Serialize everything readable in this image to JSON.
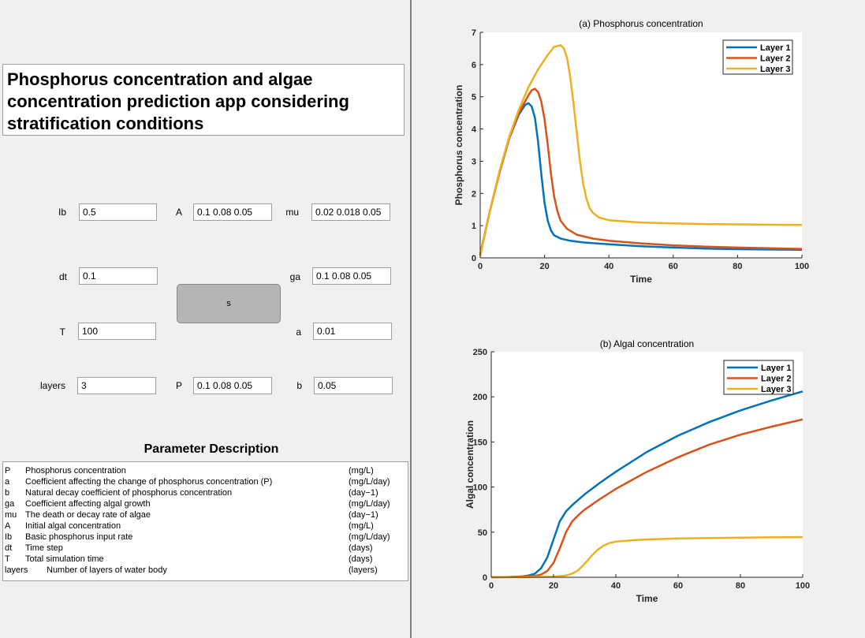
{
  "title": "Phosphorus concentration and algae concentration prediction app considering stratification conditions",
  "params": [
    {
      "label": "Ib",
      "value": "0.5"
    },
    {
      "label": "A",
      "value": "0.1 0.08 0.05"
    },
    {
      "label": "mu",
      "value": "0.02 0.018 0.05"
    },
    {
      "label": "dt",
      "value": "0.1"
    },
    {
      "label": "ga",
      "value": "0.1 0.08 0.05"
    },
    {
      "label": "T",
      "value": "100"
    },
    {
      "label": "a",
      "value": "0.01"
    },
    {
      "label": "layers",
      "value": "3"
    },
    {
      "label": "P",
      "value": "0.1 0.08 0.05"
    },
    {
      "label": "b",
      "value": "0.05"
    }
  ],
  "run_button_label": "s",
  "description": {
    "heading": "Parameter Description",
    "rows": [
      {
        "sym": "P",
        "text": "Phosphorus concentration",
        "unit": "(mg/L)"
      },
      {
        "sym": "a",
        "text": "Coefficient affecting the change of phosphorus concentration (P)",
        "unit": "(mg/L/day)"
      },
      {
        "sym": "b",
        "text": "Natural decay coefficient of phosphorus concentration",
        "unit": "(day−1)"
      },
      {
        "sym": "ga",
        "text": "Coefficient affecting algal growth",
        "unit": "(mg/L/day)"
      },
      {
        "sym": "mu",
        "text": "The death or decay rate of algae",
        "unit": "(day−1)"
      },
      {
        "sym": "A",
        "text": "Initial algal concentration",
        "unit": "(mg/L)"
      },
      {
        "sym": "Ib",
        "text": "Basic phosphorus input rate",
        "unit": "(mg/L/day)"
      },
      {
        "sym": "dt",
        "text": "Time step",
        "unit": "(days)"
      },
      {
        "sym": "T",
        "text": "Total simulation time",
        "unit": "(days)"
      },
      {
        "sym": "layers",
        "text": "Number of layers of water body",
        "unit": "(layers)"
      }
    ]
  },
  "colors": {
    "layer1": "#0072BD",
    "layer2": "#D95319",
    "layer3": "#EDB120"
  },
  "chart_data": [
    {
      "type": "line",
      "title": "(a) Phosphorus concentration",
      "xlabel": "Time",
      "ylabel": "Phosphorus concentration",
      "xlim": [
        0,
        100
      ],
      "ylim": [
        0,
        7
      ],
      "xticks": [
        0,
        20,
        40,
        60,
        80,
        100
      ],
      "yticks": [
        0,
        1,
        2,
        3,
        4,
        5,
        6,
        7
      ],
      "legend": "top-right",
      "series": [
        {
          "name": "Layer 1",
          "x": [
            0,
            3,
            6,
            9,
            12,
            14,
            15,
            16,
            17,
            18,
            19,
            20,
            21,
            22,
            23,
            25,
            28,
            32,
            40,
            50,
            60,
            70,
            80,
            90,
            100
          ],
          "y": [
            0.1,
            1.45,
            2.65,
            3.7,
            4.45,
            4.75,
            4.8,
            4.7,
            4.35,
            3.6,
            2.6,
            1.7,
            1.15,
            0.85,
            0.7,
            0.6,
            0.53,
            0.48,
            0.42,
            0.36,
            0.32,
            0.29,
            0.27,
            0.26,
            0.25
          ]
        },
        {
          "name": "Layer 2",
          "x": [
            0,
            3,
            6,
            9,
            12,
            15,
            16,
            17,
            18,
            19,
            20,
            21,
            22,
            23,
            24,
            25,
            27,
            30,
            35,
            40,
            50,
            60,
            70,
            80,
            90,
            100
          ],
          "y": [
            0.08,
            1.45,
            2.65,
            3.7,
            4.5,
            5.05,
            5.2,
            5.25,
            5.15,
            4.85,
            4.3,
            3.5,
            2.6,
            1.9,
            1.45,
            1.15,
            0.9,
            0.72,
            0.6,
            0.53,
            0.45,
            0.39,
            0.35,
            0.32,
            0.3,
            0.28
          ]
        },
        {
          "name": "Layer 3",
          "x": [
            0,
            3,
            6,
            9,
            12,
            15,
            18,
            21,
            23,
            25,
            26,
            27,
            28,
            29,
            30,
            31,
            32,
            33,
            34,
            35,
            37,
            40,
            45,
            50,
            60,
            70,
            80,
            90,
            100
          ],
          "y": [
            0.05,
            1.45,
            2.7,
            3.75,
            4.6,
            5.3,
            5.85,
            6.3,
            6.55,
            6.6,
            6.5,
            6.2,
            5.6,
            4.8,
            3.9,
            3.0,
            2.3,
            1.85,
            1.55,
            1.4,
            1.25,
            1.17,
            1.13,
            1.1,
            1.07,
            1.05,
            1.04,
            1.03,
            1.02
          ]
        }
      ]
    },
    {
      "type": "line",
      "title": "(b) Algal concentration",
      "xlabel": "Time",
      "ylabel": "Algal concentration",
      "xlim": [
        0,
        100
      ],
      "ylim": [
        0,
        250
      ],
      "xticks": [
        0,
        20,
        40,
        60,
        80,
        100
      ],
      "yticks": [
        0,
        50,
        100,
        150,
        200,
        250
      ],
      "legend": "top-right",
      "series": [
        {
          "name": "Layer 1",
          "x": [
            0,
            5,
            10,
            12,
            14,
            16,
            18,
            20,
            22,
            24,
            26,
            28,
            30,
            35,
            40,
            50,
            60,
            70,
            80,
            90,
            100
          ],
          "y": [
            0.1,
            0.3,
            1,
            2,
            4,
            10,
            22,
            42,
            62,
            73,
            80,
            86,
            92,
            105,
            117,
            139,
            157,
            172,
            185,
            196,
            206
          ]
        },
        {
          "name": "Layer 2",
          "x": [
            0,
            5,
            10,
            14,
            16,
            18,
            20,
            22,
            24,
            26,
            28,
            30,
            35,
            40,
            50,
            60,
            70,
            80,
            90,
            100
          ],
          "y": [
            0.08,
            0.2,
            0.6,
            1.5,
            3,
            7,
            16,
            32,
            50,
            62,
            69,
            75,
            87,
            98,
            117,
            133,
            147,
            158,
            167,
            175
          ]
        },
        {
          "name": "Layer 3",
          "x": [
            0,
            10,
            20,
            24,
            26,
            28,
            30,
            32,
            34,
            36,
            38,
            40,
            45,
            50,
            60,
            70,
            80,
            90,
            100
          ],
          "y": [
            0.05,
            0.1,
            0.6,
            2,
            4,
            8,
            15,
            23,
            30,
            35,
            38,
            39.5,
            41,
            42,
            43,
            43.5,
            44,
            44.3,
            44.5
          ]
        }
      ]
    }
  ]
}
